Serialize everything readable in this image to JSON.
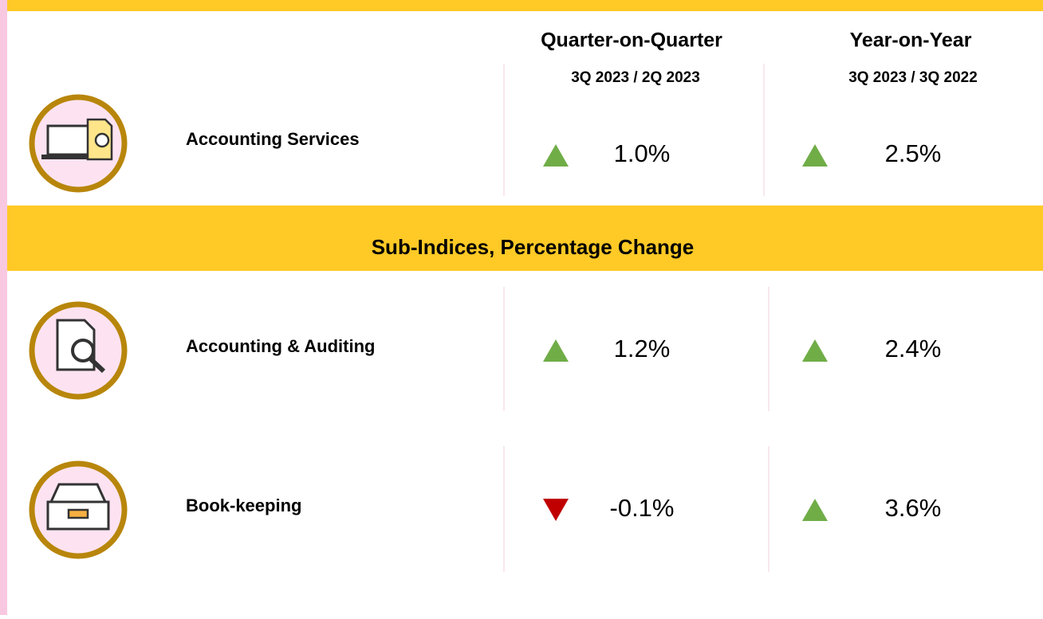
{
  "header": {
    "columns": [
      {
        "title": "Quarter-on-Quarter",
        "period": "3Q 2023 / 2Q 2023"
      },
      {
        "title": "Year-on-Year",
        "period": "3Q 2023 / 3Q 2022"
      }
    ]
  },
  "overall": {
    "rows": [
      {
        "label": "Accounting Services",
        "changes": [
          {
            "text": "1.0%",
            "direction": "up"
          },
          {
            "text": "2.5%",
            "direction": "up"
          }
        ]
      }
    ]
  },
  "sub_indices": {
    "title": "Sub-Indices, Percentage Change",
    "rows": [
      {
        "label": "Accounting & Auditing",
        "changes": [
          {
            "text": "1.2%",
            "direction": "up"
          },
          {
            "text": "2.4%",
            "direction": "up"
          }
        ]
      },
      {
        "label": "Book-keeping",
        "changes": [
          {
            "text": "-0.1%",
            "direction": "down"
          },
          {
            "text": "3.6%",
            "direction": "up"
          }
        ]
      }
    ]
  },
  "colors": {
    "up": "#70AD47",
    "down": "#C00000",
    "banner": "#FFC926"
  }
}
